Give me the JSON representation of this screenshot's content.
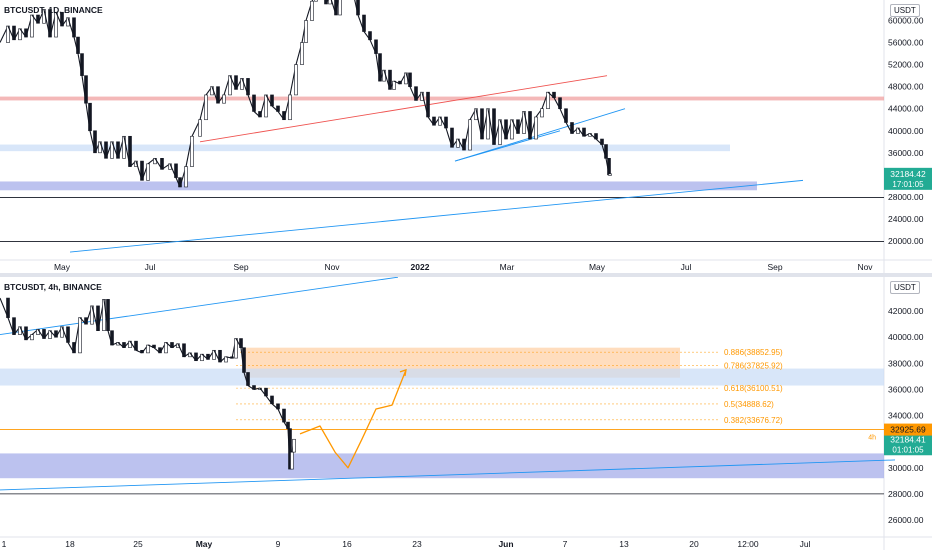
{
  "chart_data": [
    {
      "type": "candlestick",
      "title": "BTCUSDT, 1D, BINANCE",
      "currency": "USDT",
      "y_ticks": [
        20000,
        24000,
        28000,
        32000,
        36000,
        40000,
        44000,
        48000,
        52000,
        56000,
        60000
      ],
      "y_tick_labels": [
        "20000.00",
        "24000.00",
        "28000.00",
        "32000.00",
        "36000.00",
        "40000.00",
        "44000.00",
        "48000.00",
        "52000.00",
        "56000.00",
        "60000.00"
      ],
      "x_tick_labels": [
        "May",
        "Jul",
        "Sep",
        "Nov",
        "2022",
        "Mar",
        "May",
        "Jul",
        "Sep",
        "Nov"
      ],
      "last_price": "32184.42",
      "countdown": "17:01:05",
      "price_path": [
        [
          0,
          56000
        ],
        [
          8,
          59000
        ],
        [
          14,
          56500
        ],
        [
          20,
          58500
        ],
        [
          26,
          57000
        ],
        [
          32,
          61000
        ],
        [
          38,
          59500
        ],
        [
          44,
          62000
        ],
        [
          50,
          57000
        ],
        [
          56,
          61500
        ],
        [
          62,
          59000
        ],
        [
          68,
          60500
        ],
        [
          74,
          57000
        ],
        [
          78,
          54000
        ],
        [
          82,
          50000
        ],
        [
          86,
          45000
        ],
        [
          90,
          40000
        ],
        [
          95,
          36000
        ],
        [
          100,
          38000
        ],
        [
          106,
          35000
        ],
        [
          112,
          38000
        ],
        [
          118,
          35000
        ],
        [
          124,
          39000
        ],
        [
          130,
          33500
        ],
        [
          136,
          34500
        ],
        [
          142,
          31000
        ],
        [
          148,
          34000
        ],
        [
          155,
          35000
        ],
        [
          162,
          33000
        ],
        [
          170,
          34000
        ],
        [
          176,
          31500
        ],
        [
          180,
          29800
        ],
        [
          186,
          33500
        ],
        [
          192,
          39000
        ],
        [
          200,
          42000
        ],
        [
          206,
          46500
        ],
        [
          212,
          48000
        ],
        [
          218,
          45000
        ],
        [
          224,
          46500
        ],
        [
          230,
          50000
        ],
        [
          236,
          47500
        ],
        [
          242,
          49500
        ],
        [
          248,
          46500
        ],
        [
          254,
          43500
        ],
        [
          260,
          42500
        ],
        [
          266,
          46500
        ],
        [
          272,
          44500
        ],
        [
          278,
          43500
        ],
        [
          284,
          42000
        ],
        [
          290,
          46500
        ],
        [
          296,
          52000
        ],
        [
          302,
          56000
        ],
        [
          306,
          60000
        ],
        [
          312,
          63500
        ],
        [
          316,
          65000
        ],
        [
          322,
          67000
        ],
        [
          326,
          63000
        ],
        [
          330,
          64500
        ],
        [
          336,
          61000
        ],
        [
          340,
          66000
        ],
        [
          346,
          68500
        ],
        [
          352,
          66000
        ],
        [
          358,
          61000
        ],
        [
          364,
          58000
        ],
        [
          370,
          56500
        ],
        [
          376,
          54000
        ],
        [
          380,
          49000
        ],
        [
          384,
          51000
        ],
        [
          390,
          47500
        ],
        [
          394,
          49000
        ],
        [
          400,
          48500
        ],
        [
          406,
          50500
        ],
        [
          410,
          48000
        ],
        [
          416,
          45500
        ],
        [
          422,
          47000
        ],
        [
          428,
          42500
        ],
        [
          434,
          41000
        ],
        [
          440,
          42500
        ],
        [
          446,
          40500
        ],
        [
          452,
          37000
        ],
        [
          458,
          38500
        ],
        [
          464,
          36500
        ],
        [
          470,
          42000
        ],
        [
          476,
          44000
        ],
        [
          482,
          38500
        ],
        [
          488,
          44000
        ],
        [
          494,
          37500
        ],
        [
          500,
          42000
        ],
        [
          506,
          38500
        ],
        [
          512,
          42000
        ],
        [
          518,
          39500
        ],
        [
          524,
          43500
        ],
        [
          530,
          38500
        ],
        [
          536,
          42500
        ],
        [
          542,
          44000
        ],
        [
          548,
          47000
        ],
        [
          554,
          46000
        ],
        [
          560,
          44000
        ],
        [
          566,
          41500
        ],
        [
          572,
          39500
        ],
        [
          578,
          40500
        ],
        [
          584,
          39000
        ],
        [
          590,
          39500
        ],
        [
          596,
          38500
        ],
        [
          602,
          37500
        ],
        [
          606,
          35000
        ],
        [
          609,
          32000
        ],
        [
          610,
          32184
        ]
      ],
      "zones": [
        {
          "name": "resistance",
          "y_low": 45500,
          "y_high": 46200,
          "color": "#ef9a9a"
        },
        {
          "name": "support-mid",
          "y_low": 36300,
          "y_high": 37500,
          "color": "#c7dcf7"
        },
        {
          "name": "support-low",
          "y_low": 29200,
          "y_high": 30800,
          "color": "#9fa8e8"
        }
      ],
      "lines": [
        {
          "name": "red-trendline",
          "from": [
            200,
            38000
          ],
          "to": [
            607,
            50000
          ],
          "color": "#ef5350"
        },
        {
          "name": "blue-channel",
          "from": [
            455,
            34500
          ],
          "to": [
            625,
            44000
          ],
          "color": "#2196f3"
        },
        {
          "name": "blue-channel-low",
          "from": [
            455,
            34500
          ],
          "to": [
            560,
            40000
          ],
          "color": "#2196f3"
        },
        {
          "name": "long-trendline",
          "from": [
            70,
            18000
          ],
          "to": [
            803,
            31000
          ],
          "color": "#2196f3"
        }
      ],
      "hlines": [
        {
          "name": "hline-28000",
          "y": 27900,
          "color": "#131722"
        },
        {
          "name": "hline-20000",
          "y": 19900,
          "color": "#131722"
        }
      ]
    },
    {
      "type": "candlestick",
      "title": "BTCUSDT, 4h, BINANCE",
      "currency": "USDT",
      "y_ticks": [
        26000,
        28000,
        30000,
        32000,
        34000,
        36000,
        38000,
        40000,
        42000
      ],
      "y_tick_labels": [
        "26000.00",
        "28000.00",
        "30000.00",
        "32000.00",
        "34000.00",
        "36000.00",
        "38000.00",
        "40000.00",
        "42000.00"
      ],
      "x_tick_labels": [
        "1",
        "18",
        "25",
        "May",
        "9",
        "16",
        "23",
        "Jun",
        "7",
        "13",
        "20",
        "12:00",
        "Jul"
      ],
      "last_price": "32184.41",
      "countdown": "01:01:05",
      "marked_price": "32925.69",
      "marked_tag": "4h",
      "fib_levels": [
        {
          "label": "0.886(38852.95)",
          "price": 38852.95
        },
        {
          "label": "0.786(37825.92)",
          "price": 37825.92
        },
        {
          "label": "0.618(36100.51)",
          "price": 36100.51
        },
        {
          "label": "0.5(34888.62)",
          "price": 34888.62
        },
        {
          "label": "0.382(33676.72)",
          "price": 33676.72
        }
      ],
      "price_path": [
        [
          0,
          43000
        ],
        [
          8,
          41500
        ],
        [
          14,
          40200
        ],
        [
          20,
          40800
        ],
        [
          26,
          39800
        ],
        [
          32,
          40200
        ],
        [
          38,
          40600
        ],
        [
          44,
          39900
        ],
        [
          50,
          40500
        ],
        [
          56,
          40000
        ],
        [
          62,
          40800
        ],
        [
          68,
          39600
        ],
        [
          74,
          38800
        ],
        [
          80,
          41500
        ],
        [
          86,
          41000
        ],
        [
          92,
          42400
        ],
        [
          98,
          40500
        ],
        [
          104,
          42900
        ],
        [
          108,
          40500
        ],
        [
          112,
          39400
        ],
        [
          118,
          39600
        ],
        [
          124,
          39200
        ],
        [
          130,
          39700
        ],
        [
          136,
          39000
        ],
        [
          142,
          38800
        ],
        [
          148,
          39400
        ],
        [
          154,
          39200
        ],
        [
          160,
          38800
        ],
        [
          166,
          39600
        ],
        [
          172,
          39200
        ],
        [
          178,
          39500
        ],
        [
          184,
          38500
        ],
        [
          190,
          38800
        ],
        [
          196,
          38200
        ],
        [
          202,
          38700
        ],
        [
          208,
          38300
        ],
        [
          214,
          39000
        ],
        [
          220,
          38100
        ],
        [
          226,
          38500
        ],
        [
          232,
          38400
        ],
        [
          236,
          39900
        ],
        [
          241,
          39200
        ],
        [
          244,
          37300
        ],
        [
          248,
          36300
        ],
        [
          254,
          36000
        ],
        [
          260,
          36100
        ],
        [
          266,
          35500
        ],
        [
          272,
          34900
        ],
        [
          278,
          34500
        ],
        [
          284,
          33500
        ],
        [
          288,
          33000
        ],
        [
          290,
          29900
        ],
        [
          292,
          31200
        ],
        [
          294,
          32184
        ]
      ],
      "zones": [
        {
          "name": "fib-zone",
          "y_low": 36900,
          "y_high": 39200,
          "color": "#ffd1a8"
        },
        {
          "name": "resistance-zone",
          "y_low": 36300,
          "y_high": 37600,
          "color": "#c7dcf7"
        },
        {
          "name": "support-zone",
          "y_low": 29200,
          "y_high": 31100,
          "color": "#9fa8e8"
        }
      ],
      "lines": [
        {
          "name": "upper-trendline",
          "from": [
            0,
            40200
          ],
          "to": [
            398,
            44600
          ],
          "color": "#2196f3"
        },
        {
          "name": "lower-trendline",
          "from": [
            0,
            28300
          ],
          "to": [
            895,
            30600
          ],
          "color": "#2196f3"
        }
      ],
      "hlines": [
        {
          "name": "hline-28000",
          "y": 28000,
          "color": "#131722"
        },
        {
          "name": "hline-orange",
          "y": 32925.69,
          "color": "#ff9800"
        }
      ],
      "projection": [
        [
          300,
          32600
        ],
        [
          320,
          33200
        ],
        [
          335,
          31200
        ],
        [
          348,
          30000
        ],
        [
          362,
          32200
        ],
        [
          376,
          34500
        ],
        [
          392,
          34800
        ],
        [
          406,
          37500
        ]
      ]
    }
  ]
}
